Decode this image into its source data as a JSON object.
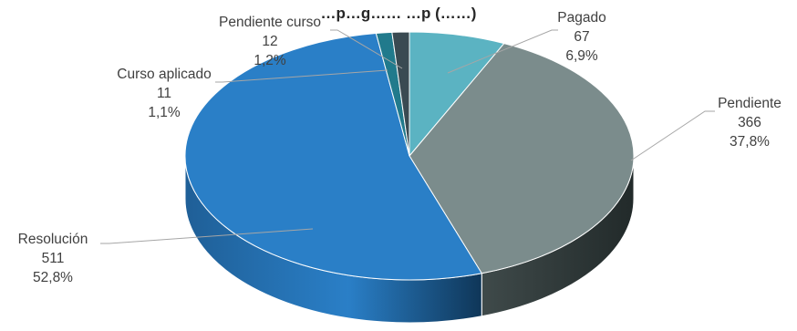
{
  "chart_data": {
    "type": "pie",
    "title": "…p…g…… …p (……)",
    "series": [
      {
        "name": "Pagado",
        "value": 67,
        "percent": "6,9%",
        "color": "#5bb3c2"
      },
      {
        "name": "Pendiente",
        "value": 366,
        "percent": "37,8%",
        "color": "#7b8c8c"
      },
      {
        "name": "Resolución",
        "value": 511,
        "percent": "52,8%",
        "color": "#2a7fc7"
      },
      {
        "name": "Curso aplicado",
        "value": 11,
        "percent": "1,1%",
        "color": "#217a8c"
      },
      {
        "name": "Pendiente curso",
        "value": 12,
        "percent": "1,2%",
        "color": "#3a4a52"
      }
    ],
    "three_d": true,
    "legend": "none"
  }
}
